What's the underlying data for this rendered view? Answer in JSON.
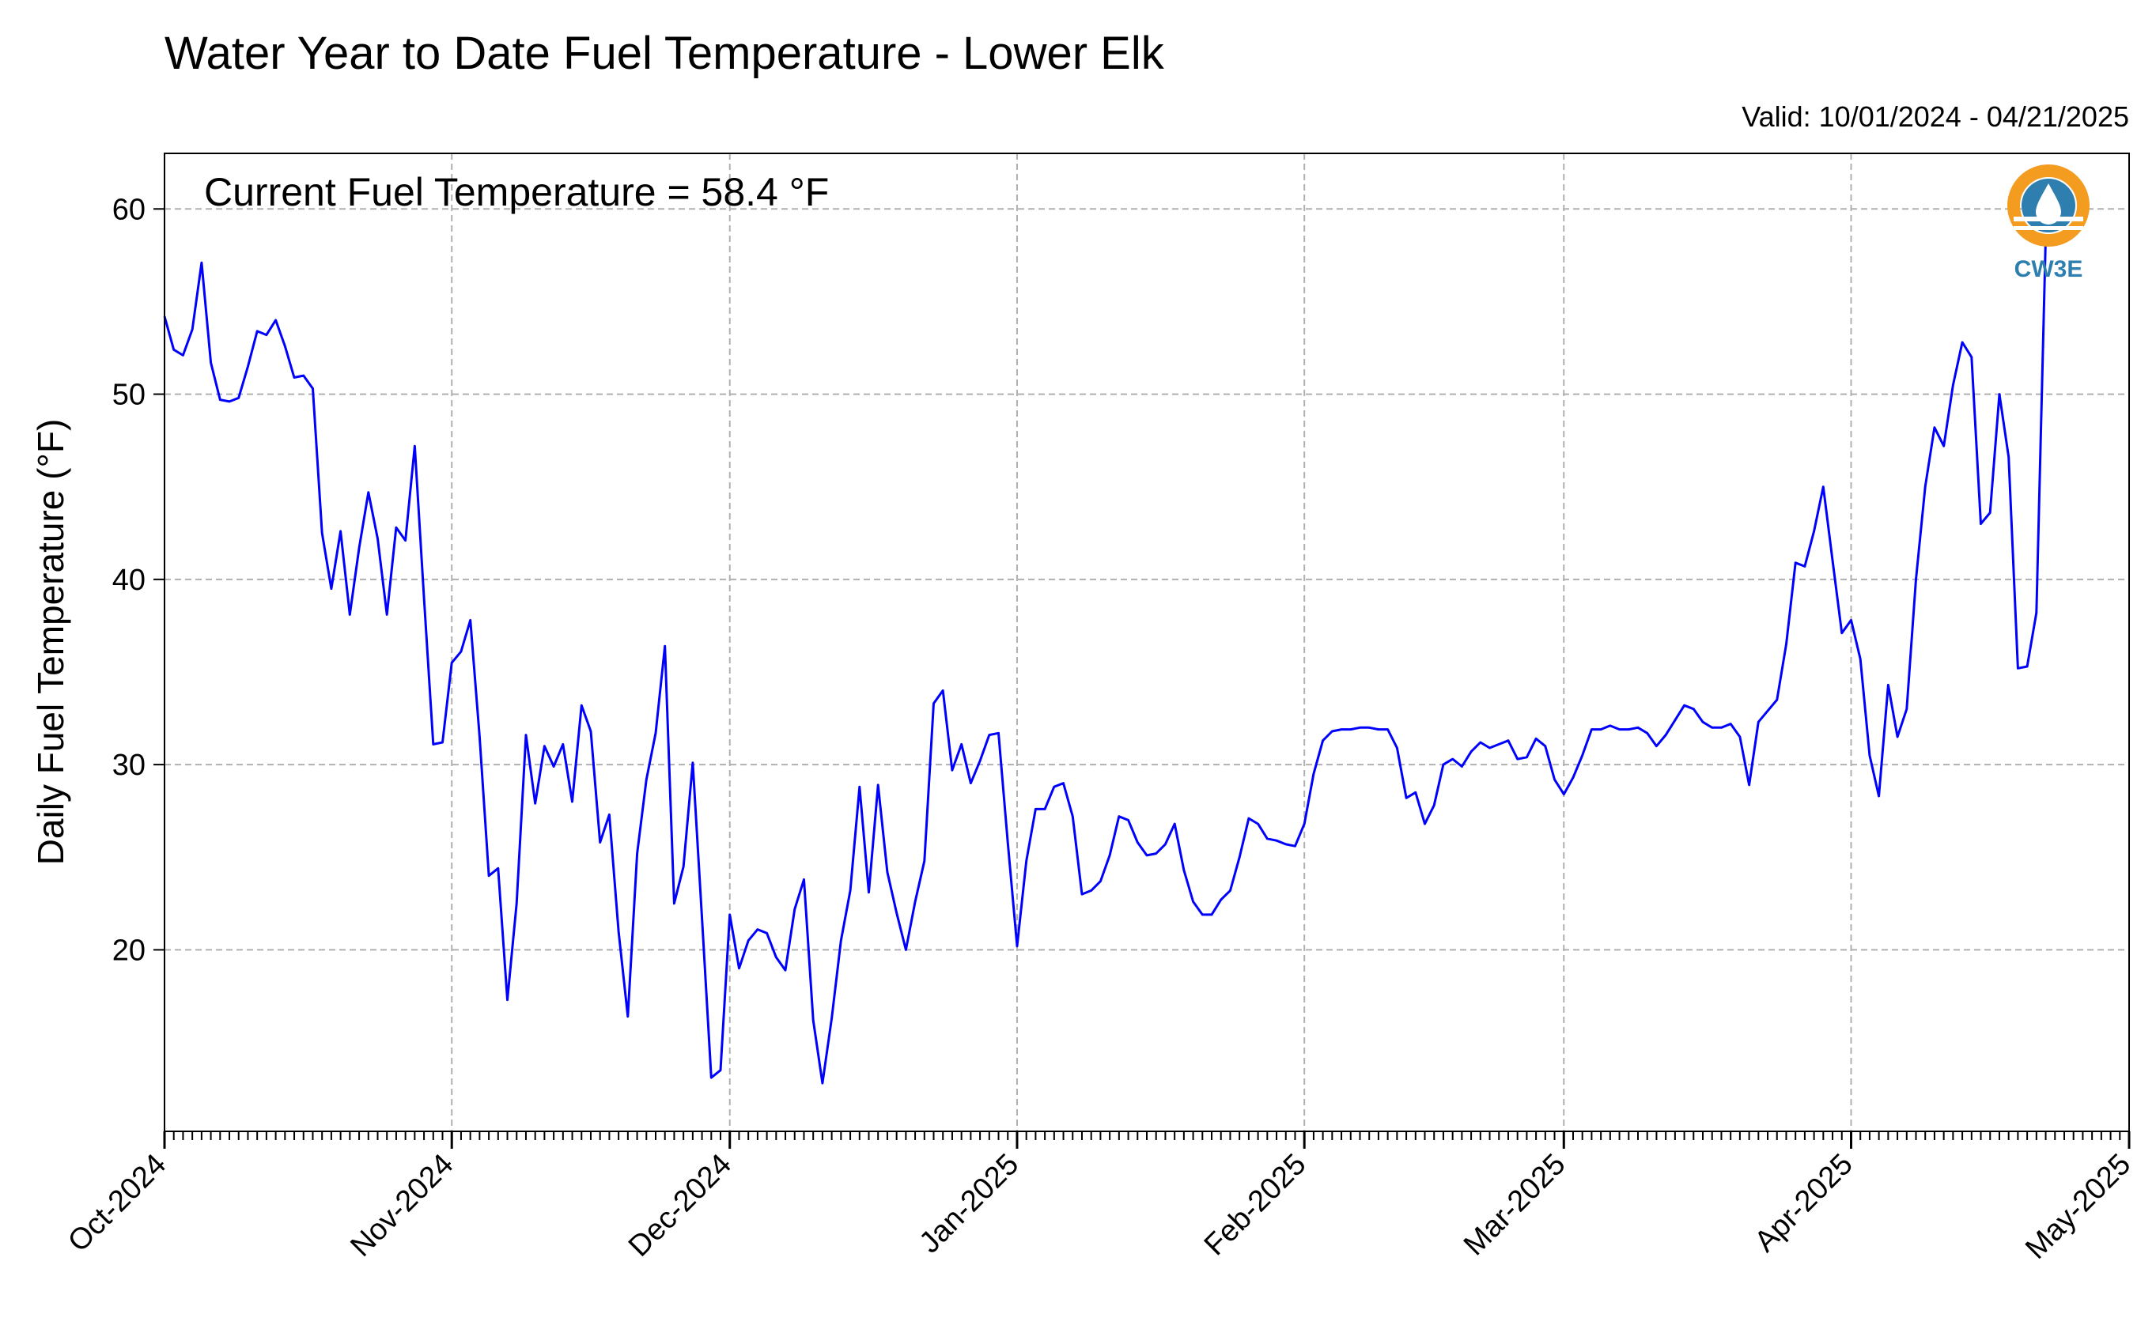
{
  "chart_data": {
    "type": "line",
    "title": "Water Year to Date Fuel Temperature - Lower Elk",
    "subtitle": "Valid: 10/01/2024 - 04/21/2025",
    "annotation": "Current Fuel Temperature = 58.4 °F",
    "ylabel": "Daily Fuel Temperature (°F)",
    "xlabel": "",
    "start_date": "2024-10-01",
    "xlim": [
      "2024-10-01",
      "2025-05-01"
    ],
    "ylim": [
      10.2,
      63
    ],
    "yticks": [
      20,
      30,
      40,
      50,
      60
    ],
    "x_tick_labels": [
      "Oct-2024",
      "Nov-2024",
      "Dec-2024",
      "Jan-2025",
      "Feb-2025",
      "Mar-2025",
      "Apr-2025",
      "May-2025"
    ],
    "grid": true,
    "line_color": "#0000ff",
    "series": [
      {
        "values": [
          54.2,
          52.4,
          52.1,
          53.5,
          57.1,
          51.7,
          49.7,
          49.6,
          49.8,
          51.5,
          53.4,
          53.2,
          54.0,
          52.6,
          50.9,
          51.0,
          50.3,
          42.5,
          39.5,
          42.6,
          38.1,
          41.7,
          44.7,
          42.2,
          38.1,
          42.8,
          42.1,
          47.2,
          39.0,
          31.1,
          31.2,
          35.5,
          36.1,
          37.8,
          31.5,
          24.0,
          24.4,
          17.3,
          22.5,
          31.6,
          27.9,
          31.0,
          29.9,
          31.1,
          28.0,
          33.2,
          31.8,
          25.8,
          27.3,
          21.0,
          16.4,
          25.2,
          29.2,
          31.7,
          36.4,
          22.5,
          24.5,
          30.1,
          21.7,
          13.1,
          13.5,
          21.9,
          19.0,
          20.5,
          21.1,
          20.9,
          19.6,
          18.9,
          22.2,
          23.8,
          16.2,
          12.8,
          16.3,
          20.5,
          23.2,
          28.8,
          23.1,
          28.9,
          24.2,
          22.0,
          20.0,
          22.6,
          24.8,
          33.3,
          34.0,
          29.7,
          31.1,
          29.0,
          30.2,
          31.6,
          31.7,
          25.8,
          20.2,
          24.8,
          27.6,
          27.6,
          28.8,
          29.0,
          27.2,
          23.0,
          23.2,
          23.7,
          25.1,
          27.2,
          27.0,
          25.8,
          25.1,
          25.2,
          25.7,
          26.8,
          24.3,
          22.6,
          21.9,
          21.9,
          22.7,
          23.2,
          25.0,
          27.1,
          26.8,
          26.0,
          25.9,
          25.7,
          25.6,
          26.8,
          29.5,
          31.3,
          31.8,
          31.9,
          31.9,
          32.0,
          32.0,
          31.9,
          31.9,
          30.9,
          28.2,
          28.5,
          26.8,
          27.8,
          30.0,
          30.3,
          29.9,
          30.7,
          31.2,
          30.9,
          31.1,
          31.3,
          30.3,
          30.4,
          31.4,
          31.0,
          29.2,
          28.4,
          29.3,
          30.5,
          31.9,
          31.9,
          32.1,
          31.9,
          31.9,
          32.0,
          31.7,
          31.0,
          31.6,
          32.4,
          33.2,
          33.0,
          32.3,
          32.0,
          32.0,
          32.2,
          31.5,
          28.9,
          32.3,
          32.9,
          33.5,
          36.5,
          40.9,
          40.7,
          42.6,
          45.0,
          41.0,
          37.1,
          37.8,
          35.7,
          30.5,
          28.3,
          34.3,
          31.5,
          33.0,
          40.0,
          45.0,
          48.2,
          47.2,
          50.5,
          52.8,
          52.0,
          43.0,
          43.6,
          50.0,
          46.6,
          35.2,
          35.3,
          38.2,
          58.4
        ]
      }
    ]
  },
  "logo": {
    "text": "CW3E",
    "ring_color": "#f39c1f",
    "icon_color": "#2e7fb0"
  }
}
